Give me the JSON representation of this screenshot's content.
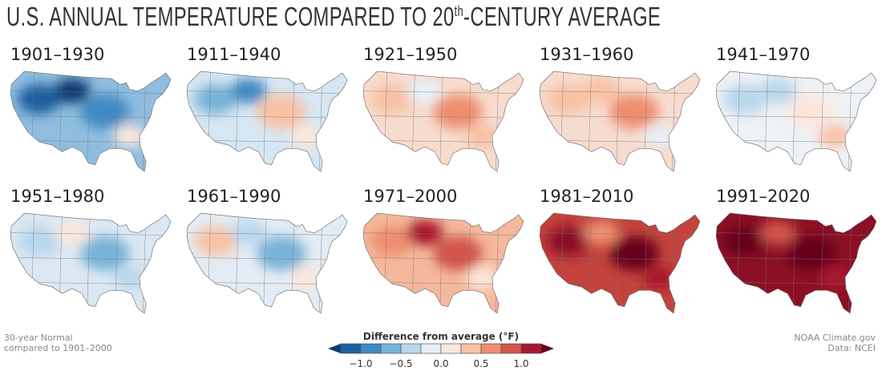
{
  "title": {
    "main": "U.S. ANNUAL TEMPERATURE COMPARED TO 20",
    "sup": "th",
    "rest": "-CENTURY AVERAGE"
  },
  "maps": [
    {
      "period": "1901–1930",
      "base": "#8fbde0",
      "blobs": [
        "#1f5fa0",
        "#3f8ac4",
        "#0b3a70",
        "#fbe6dc"
      ]
    },
    {
      "period": "1911–1940",
      "base": "#d6e7f3",
      "blobs": [
        "#78b3d8",
        "#f9c1a4",
        "#3f8ac4",
        "#fbe6dc"
      ]
    },
    {
      "period": "1921–1950",
      "base": "#f7dccd",
      "blobs": [
        "#f9c1a4",
        "#ee8e6f",
        "#e6eff7",
        "#f9c1a4"
      ]
    },
    {
      "period": "1931–1960",
      "base": "#f6dccf",
      "blobs": [
        "#f9c1a4",
        "#ee8e6f",
        "#f9c1a4",
        "#e6eff7"
      ]
    },
    {
      "period": "1941–1970",
      "base": "#eef1f5",
      "blobs": [
        "#b9d7ec",
        "#fbe6dc",
        "#b9d7ec",
        "#f9c1a4"
      ]
    },
    {
      "period": "1951–1980",
      "base": "#dbe8f3",
      "blobs": [
        "#b9d7ec",
        "#78b3d8",
        "#fbe6dc",
        "#b9d7ec"
      ]
    },
    {
      "period": "1961–1990",
      "base": "#e3ecf4",
      "blobs": [
        "#f9c1a4",
        "#78b3d8",
        "#b9d7ec",
        "#fbe6dc"
      ]
    },
    {
      "period": "1971–2000",
      "base": "#f4b89c",
      "blobs": [
        "#ee8e6f",
        "#d3554a",
        "#a8172e",
        "#fbe6dc"
      ]
    },
    {
      "period": "1981–2010",
      "base": "#c4423c",
      "blobs": [
        "#8a0f25",
        "#67001f",
        "#ee8e6f",
        "#a8172e"
      ]
    },
    {
      "period": "1991–2020",
      "base": "#8c1025",
      "blobs": [
        "#67001f",
        "#67001f",
        "#d3554a",
        "#a8172e"
      ]
    }
  ],
  "notes": {
    "left_1": "30-year Normal",
    "left_2": "compared to 1901–2000",
    "right_1": "NOAA Climate.gov",
    "right_2": "Data: NCEI"
  },
  "legend": {
    "title": "Difference from average (°F)",
    "low_arrow": "#0b3a70",
    "high_arrow": "#67001f",
    "bins": [
      "#1f5fa0",
      "#3f8ac4",
      "#78b3d8",
      "#b9d7ec",
      "#e6eff7",
      "#fbe6dc",
      "#f9c1a4",
      "#ee8e6f",
      "#d3554a",
      "#a8172e"
    ],
    "ticks": [
      "−1.0",
      "−0.5",
      "0.0",
      "0.5",
      "1.0"
    ]
  }
}
